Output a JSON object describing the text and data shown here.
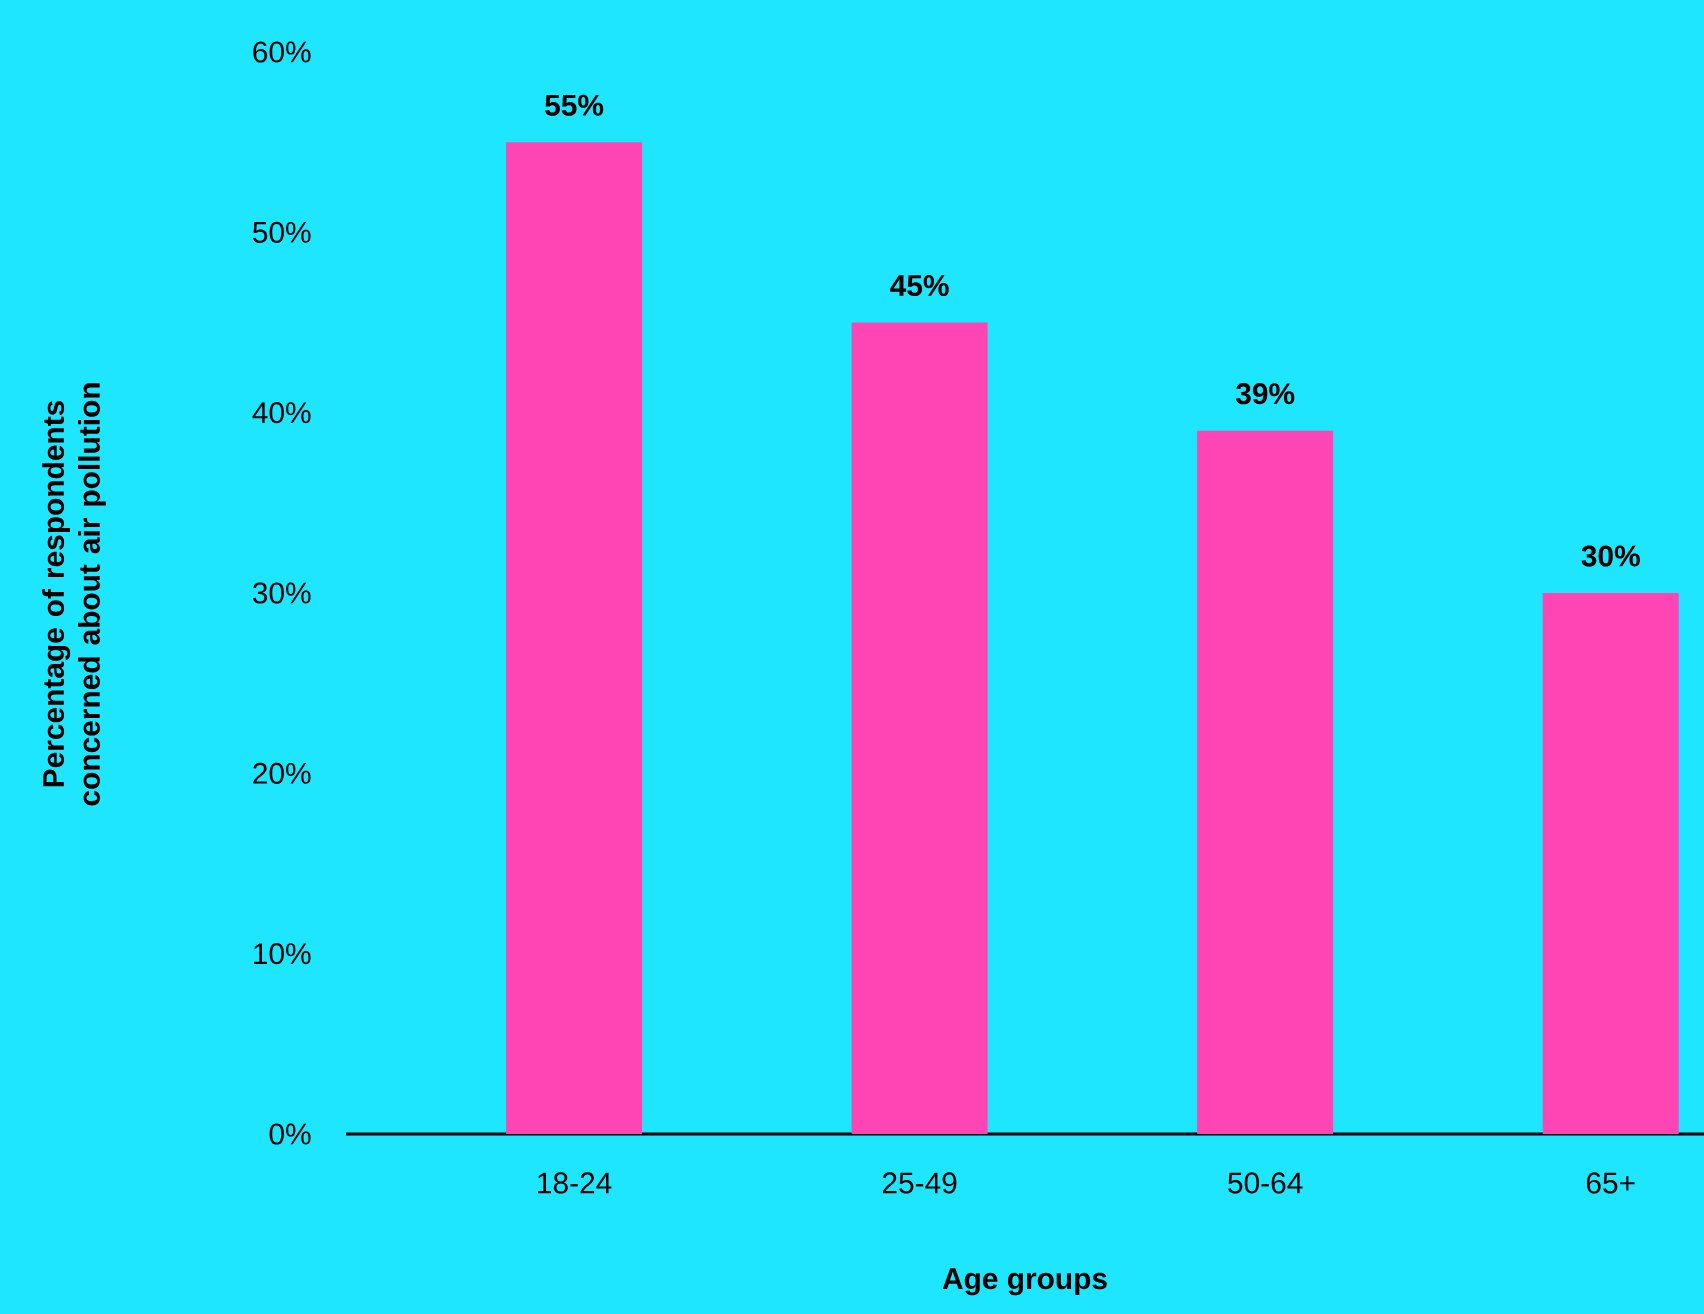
{
  "chart_data": {
    "type": "bar",
    "categories": [
      "18-24",
      "25-49",
      "50-64",
      "65+"
    ],
    "values": [
      55,
      45,
      39,
      30
    ],
    "value_labels": [
      "55%",
      "45%",
      "39%",
      "30%"
    ],
    "color": "#ff44b4",
    "xlabel": "Age groups",
    "ylabel": "Percentage of respondents concerned about air pollution",
    "ylim": [
      0,
      60
    ],
    "yticks": [
      {
        "value": 0,
        "label": "0%"
      },
      {
        "value": 10,
        "label": "10%"
      },
      {
        "value": 20,
        "label": "20%"
      },
      {
        "value": 30,
        "label": "30%"
      },
      {
        "value": 40,
        "label": "40%"
      },
      {
        "value": 50,
        "label": "50%"
      },
      {
        "value": 60,
        "label": "60%"
      }
    ],
    "grid": false
  }
}
